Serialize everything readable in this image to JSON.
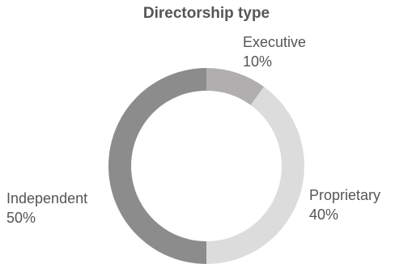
{
  "chart_data": {
    "type": "pie",
    "title": "Directorship type",
    "slices": [
      {
        "label": "Executive",
        "value": 10,
        "value_label": "10%",
        "color": "#b1aeb0"
      },
      {
        "label": "Proprietary",
        "value": 40,
        "value_label": "40%",
        "color": "#dcdcdc"
      },
      {
        "label": "Independent",
        "value": 50,
        "value_label": "50%",
        "color": "#8c8c8c"
      }
    ],
    "donut": true,
    "start_angle_deg": 0,
    "direction": "clockwise",
    "legend": "none"
  }
}
